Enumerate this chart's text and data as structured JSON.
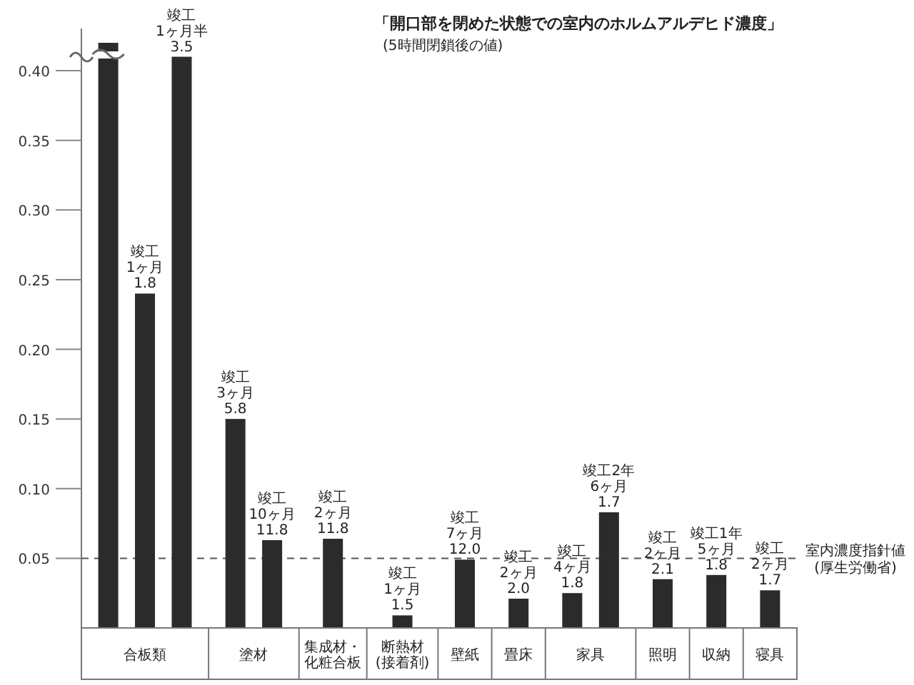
{
  "chart_data": {
    "type": "bar",
    "title": "「開口部を閉めた状態での室内のホルムアルデヒド濃度」",
    "subtitle": "(5時間閉鎖後の値)",
    "categories": [
      null,
      "合板類",
      null,
      "塗材",
      null,
      "集成材・化粧合板",
      "断熱材(接着剤)",
      "壁紙",
      "畳床",
      "家具",
      null,
      "照明",
      "収納",
      "寝具"
    ],
    "values": [
      0.42,
      0.24,
      0.41,
      0.15,
      0.063,
      0.064,
      0.009,
      0.049,
      0.021,
      0.025,
      0.083,
      0.035,
      0.038,
      0.027
    ],
    "color": "#2b2b2b",
    "value_labels": [
      null,
      "竣工1ヶ月\n1.8",
      "竣工1ヶ月半\n3.5",
      "竣工3ヶ月\n5.8",
      "竣工10ヶ月\n11.8",
      "竣工2ヶ月\n11.8",
      "竣工1ヶ月\n1.5",
      "竣工7ヶ月\n12.0",
      "竣工2ヶ月\n2.0",
      "竣工4ヶ月\n1.8",
      "竣工2年6ヶ月\n1.7",
      "竣工2ヶ月\n2.1",
      "竣工1年5ヶ月\n1.8",
      "竣工2ヶ月\n1.7"
    ],
    "ylim": [
      0,
      0.42
    ],
    "yticks": [
      {
        "value": 0.05,
        "label": "0.05"
      },
      {
        "value": 0.1,
        "label": "0.10"
      },
      {
        "value": 0.15,
        "label": "0.15"
      },
      {
        "value": 0.2,
        "label": "0.20"
      },
      {
        "value": 0.25,
        "label": "0.25"
      },
      {
        "value": 0.3,
        "label": "0.30"
      },
      {
        "value": 0.35,
        "label": "0.35"
      },
      {
        "value": 0.4,
        "label": "0.40"
      }
    ],
    "ref_lines": [
      {
        "axis": "y",
        "value": 0.05,
        "label": "室内濃度指針値(厚生労働省)",
        "line_style": "dashed",
        "color": "#555555"
      }
    ]
  }
}
